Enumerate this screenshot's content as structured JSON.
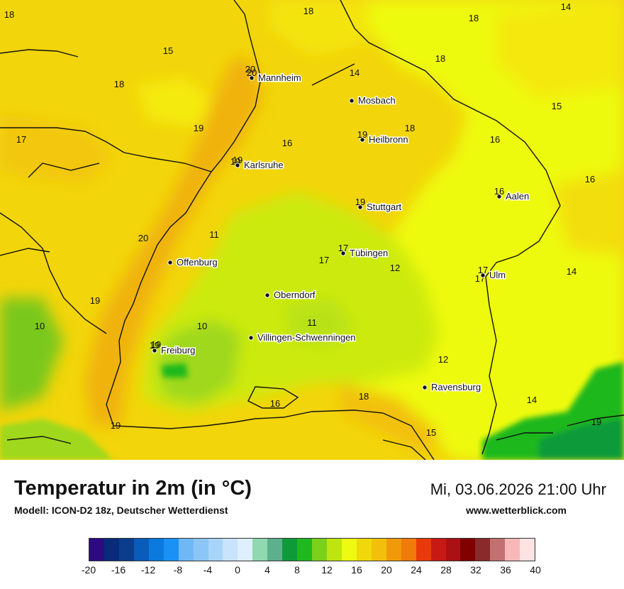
{
  "title": "Temperatur in 2m (in °C)",
  "subtitle": "Modell: ICON-D2 18z, Deutscher Wetterdienst",
  "datetime": "Mi, 03.06.2026 21:00 Uhr",
  "website": "www.wetterblick.com",
  "cities": [
    {
      "name": "Mannheim",
      "value": "20"
    },
    {
      "name": "Mosbach",
      "value": ""
    },
    {
      "name": "Heilbronn",
      "value": "19"
    },
    {
      "name": "Karlsruhe",
      "value": "19"
    },
    {
      "name": "Stuttgart",
      "value": "19"
    },
    {
      "name": "Aalen",
      "value": "16"
    },
    {
      "name": "Offenburg",
      "value": ""
    },
    {
      "name": "Tübingen",
      "value": "17"
    },
    {
      "name": "Ulm",
      "value": "17"
    },
    {
      "name": "Oberndorf",
      "value": ""
    },
    {
      "name": "Villingen-Schwenningen",
      "value": ""
    },
    {
      "name": "Freiburg",
      "value": "19"
    },
    {
      "name": "Ravensburg",
      "value": ""
    }
  ],
  "grid_values": [
    "18",
    "18",
    "18",
    "14",
    "15",
    "18",
    "20",
    "14",
    "18",
    "19",
    "18",
    "15",
    "17",
    "16",
    "16",
    "19",
    "16",
    "20",
    "11",
    "17",
    "12",
    "14",
    "19",
    "17",
    "10",
    "10",
    "11",
    "19",
    "12",
    "18",
    "14",
    "16",
    "19",
    "15",
    "19"
  ],
  "legend": {
    "colors": [
      "#2e0a80",
      "#0a2a7a",
      "#0a3e8c",
      "#0a5cba",
      "#0a7ade",
      "#1a92f5",
      "#70b8f5",
      "#8cc6f7",
      "#a9d4fa",
      "#c9e3fc",
      "#dfeffd",
      "#8fd8b0",
      "#5cb08c",
      "#0f9a3a",
      "#1fb81f",
      "#7ad01a",
      "#bfe510",
      "#eefa10",
      "#f0d90a",
      "#f2c00a",
      "#f09a0a",
      "#f07a0a",
      "#e83a0a",
      "#c81a14",
      "#aa1014",
      "#800000",
      "#8a2a2a",
      "#c27070",
      "#f8b8b8",
      "#fde2e2"
    ],
    "tick_labels": [
      "-20",
      "-16",
      "-12",
      "-8",
      "-4",
      "0",
      "4",
      "8",
      "12",
      "16",
      "20",
      "24",
      "28",
      "32",
      "36",
      "40"
    ]
  }
}
